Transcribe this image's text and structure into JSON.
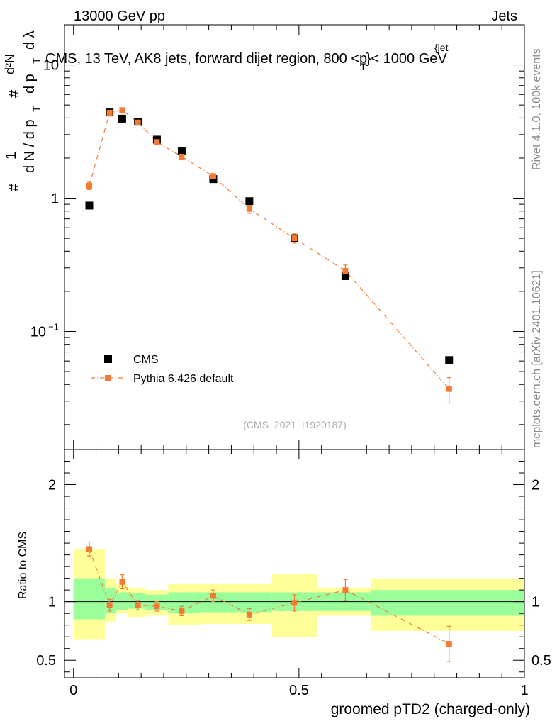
{
  "header": {
    "left": "13000 GeV pp",
    "right": "Jets"
  },
  "side_text": {
    "rivet": "Rivet 4.1.0,  100k events",
    "mcplots": "mcplots.cern.ch [arXiv:2401.10621]"
  },
  "chart_data": [
    {
      "type": "scatter",
      "panel": "main",
      "title": "CMS, 13 TeV, AK8 jets, forward dijet region, 800 <p",
      "title_sup": "{jet",
      "title_sub": "T",
      "title_end": "}< 1000 GeV",
      "ylabel": "# 1 / dN/dp_T # d²N / dp_T dλ",
      "ylabel_parts": {
        "hash": "#",
        "one": "1",
        "dn": "d N / d p",
        "t": "T",
        "d2n": "d²N",
        "dpt": "d p",
        "dl": "d λ"
      },
      "yscale": "log",
      "ylim": [
        0.013,
        20
      ],
      "xlim": [
        -0.02,
        1.0
      ],
      "yticks": [
        {
          "value": 10,
          "label": "10"
        },
        {
          "value": 1,
          "label": "1"
        },
        {
          "value": 0.1,
          "label": "10",
          "sup": "−1"
        }
      ],
      "watermark": "(CMS_2021_I1920187)",
      "series": [
        {
          "name": "CMS",
          "marker": "square",
          "color": "#000000",
          "x": [
            0.035,
            0.08,
            0.108,
            0.143,
            0.185,
            0.24,
            0.31,
            0.39,
            0.49,
            0.603,
            0.833
          ],
          "y": [
            0.88,
            4.4,
            3.95,
            3.75,
            2.75,
            2.25,
            1.39,
            0.95,
            0.5,
            0.26,
            0.061
          ]
        },
        {
          "name": "Pythia 6.426 default",
          "marker": "square-small",
          "color": "#f47a33",
          "line": "dash-dot",
          "x": [
            0.035,
            0.08,
            0.108,
            0.143,
            0.185,
            0.24,
            0.31,
            0.39,
            0.49,
            0.603,
            0.833
          ],
          "y": [
            1.24,
            4.38,
            4.58,
            3.7,
            2.64,
            2.05,
            1.46,
            0.83,
            0.5,
            0.285,
            0.037
          ],
          "yerr": [
            0.08,
            0.15,
            0.15,
            0.12,
            0.1,
            0.08,
            0.07,
            0.06,
            0.04,
            0.03,
            0.008
          ]
        }
      ],
      "legend": {
        "position": "lower-left",
        "entries": [
          "CMS",
          "Pythia 6.426 default"
        ]
      }
    },
    {
      "type": "scatter",
      "panel": "ratio",
      "ylabel": "Ratio to CMS",
      "xlabel": "groomed pTD2 (charged-only)",
      "xlim": [
        -0.02,
        1.0
      ],
      "ylim": [
        0.35,
        2.3
      ],
      "yticks": [
        2,
        1,
        0.5
      ],
      "ytick_labels": [
        "2",
        "1",
        "0.5"
      ],
      "xticks": [
        0,
        0.5,
        1
      ],
      "xtick_labels": [
        "0",
        "0.5",
        "1"
      ],
      "reference": 1,
      "bands": [
        {
          "x0": 0.0,
          "x1": 0.07,
          "stat": [
            0.85,
            1.2
          ],
          "total": [
            0.68,
            1.45
          ]
        },
        {
          "x0": 0.07,
          "x1": 0.095,
          "stat": [
            0.9,
            1.12
          ],
          "total": [
            0.83,
            1.2
          ]
        },
        {
          "x0": 0.095,
          "x1": 0.12,
          "stat": [
            0.93,
            1.08
          ],
          "total": [
            0.9,
            1.15
          ]
        },
        {
          "x0": 0.12,
          "x1": 0.16,
          "stat": [
            0.94,
            1.07
          ],
          "total": [
            0.87,
            1.12
          ]
        },
        {
          "x0": 0.16,
          "x1": 0.21,
          "stat": [
            0.93,
            1.06
          ],
          "total": [
            0.88,
            1.1
          ]
        },
        {
          "x0": 0.21,
          "x1": 0.28,
          "stat": [
            0.9,
            1.08
          ],
          "total": [
            0.8,
            1.15
          ]
        },
        {
          "x0": 0.28,
          "x1": 0.44,
          "stat": [
            0.91,
            1.08
          ],
          "total": [
            0.81,
            1.15
          ]
        },
        {
          "x0": 0.44,
          "x1": 0.54,
          "stat": [
            0.92,
            1.08
          ],
          "total": [
            0.7,
            1.24
          ]
        },
        {
          "x0": 0.54,
          "x1": 0.66,
          "stat": [
            0.92,
            1.08
          ],
          "total": [
            0.88,
            1.12
          ]
        },
        {
          "x0": 0.66,
          "x1": 1.0,
          "stat": [
            0.88,
            1.1
          ],
          "total": [
            0.75,
            1.2
          ]
        }
      ],
      "band_colors": {
        "stat": "#9aff9a",
        "total": "#ffff99"
      },
      "series": [
        {
          "name": "Pythia 6.426 default",
          "color": "#f47a33",
          "x": [
            0.035,
            0.08,
            0.108,
            0.143,
            0.185,
            0.24,
            0.31,
            0.39,
            0.49,
            0.603,
            0.833
          ],
          "y": [
            1.45,
            0.97,
            1.17,
            0.97,
            0.96,
            0.92,
            1.05,
            0.89,
            0.99,
            1.1,
            0.64
          ],
          "yerr": [
            0.06,
            0.05,
            0.06,
            0.04,
            0.04,
            0.04,
            0.05,
            0.05,
            0.07,
            0.09,
            0.15
          ]
        }
      ]
    }
  ]
}
